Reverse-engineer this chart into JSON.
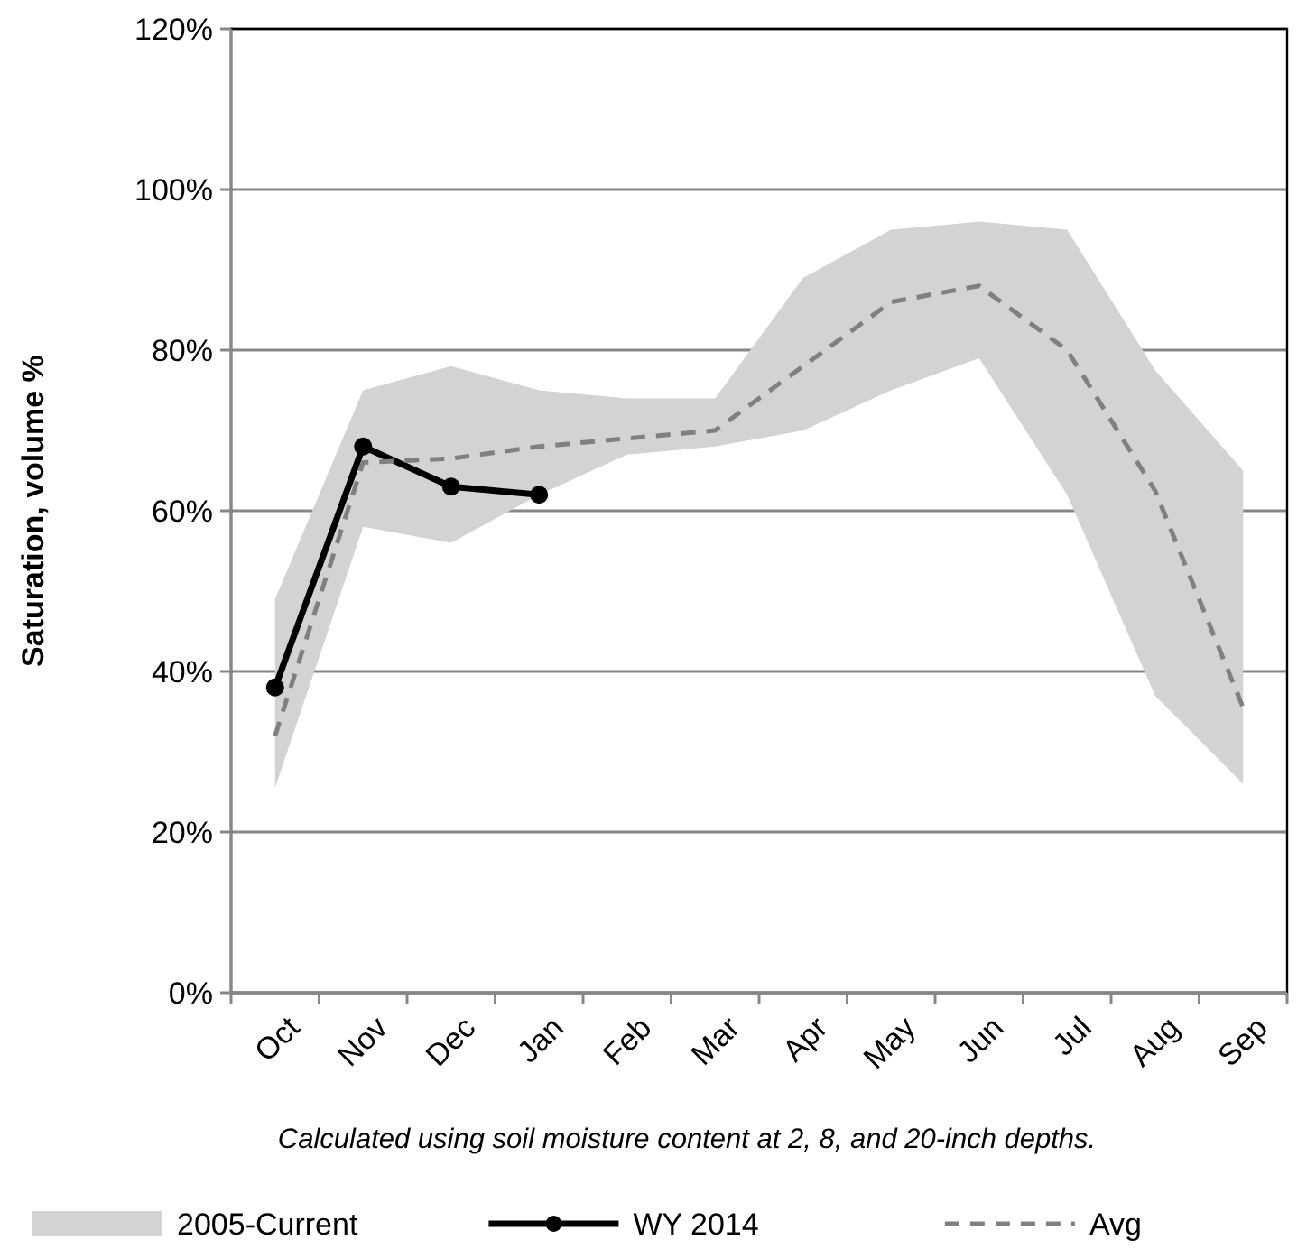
{
  "chart_data": {
    "type": "line",
    "ylabel": "Saturation, volume %",
    "categories": [
      "Oct",
      "Nov",
      "Dec",
      "Jan",
      "Feb",
      "Mar",
      "Apr",
      "May",
      "Jun",
      "Jul",
      "Aug",
      "Sep"
    ],
    "ylim": [
      0,
      120
    ],
    "yticks": [
      {
        "value": 0,
        "label": "0%"
      },
      {
        "value": 20,
        "label": "20%"
      },
      {
        "value": 40,
        "label": "40%"
      },
      {
        "value": 60,
        "label": "60%"
      },
      {
        "value": 80,
        "label": "80%"
      },
      {
        "value": 100,
        "label": "100%"
      },
      {
        "value": 120,
        "label": "120%"
      }
    ],
    "grid": "y",
    "legend": "bottom",
    "annotations": [
      "Calculated using soil moisture content at 2, 8, and 20-inch depths."
    ],
    "series": [
      {
        "name": "2005-Current",
        "type": "area",
        "color": "#d3d3d3",
        "values": [
          null,
          null,
          null,
          null,
          null,
          null,
          null,
          null,
          null,
          null,
          null,
          null
        ],
        "lower": [
          25.5,
          58,
          56,
          62,
          67,
          68,
          70,
          75,
          79,
          62,
          37,
          26
        ],
        "upper": [
          49,
          75,
          78,
          75,
          74,
          74,
          89,
          95,
          96,
          95,
          77.5,
          65
        ]
      },
      {
        "name": "WY 2014",
        "type": "line",
        "color": "#000000",
        "marker": "circle",
        "line_style": "solid",
        "values": [
          38,
          68,
          63,
          62,
          null,
          null,
          null,
          null,
          null,
          null,
          null,
          null
        ]
      },
      {
        "name": "Avg",
        "type": "line",
        "color": "#808080",
        "marker": "none",
        "line_style": "dashed",
        "values": [
          32,
          66,
          66.5,
          68,
          69,
          70,
          78,
          86,
          88,
          80,
          62.5,
          35.5
        ]
      }
    ]
  }
}
